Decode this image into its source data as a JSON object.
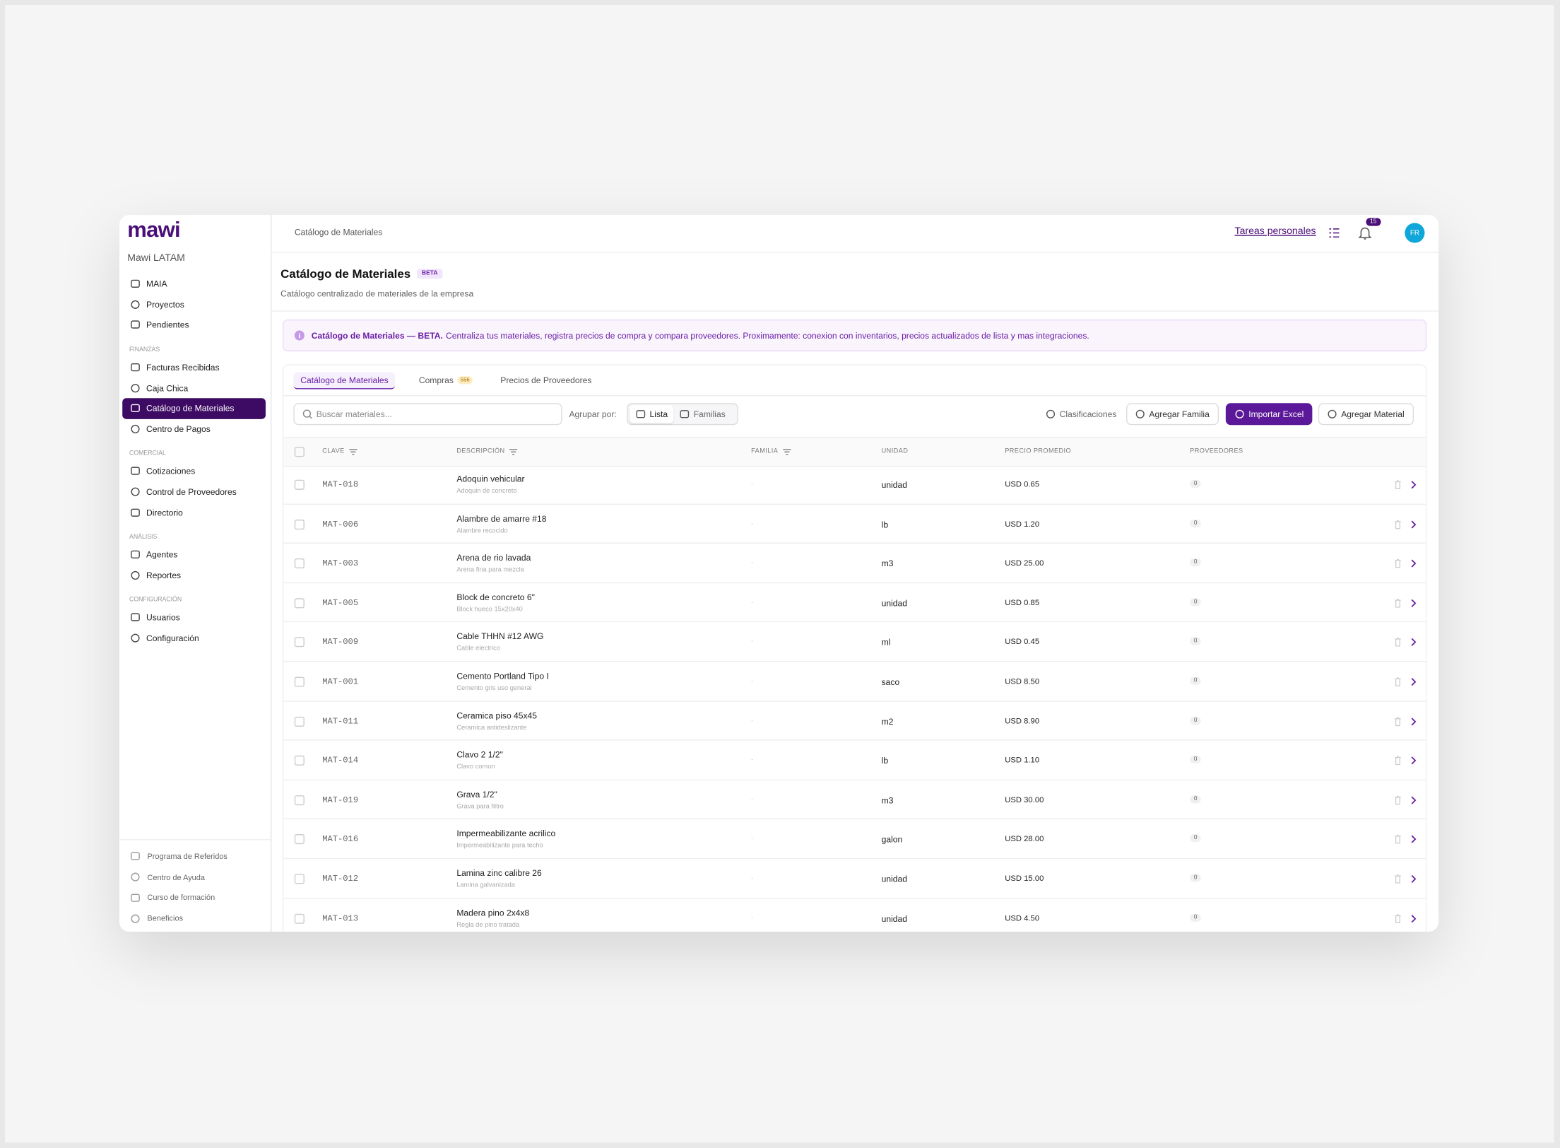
{
  "sidebar": {
    "logo": "mawi",
    "org": "Mawi LATAM",
    "sections": [
      {
        "items": [
          "MAIA",
          "Proyectos",
          "Pendientes"
        ]
      },
      {
        "label": "FINANZAS",
        "items": [
          "Facturas Recibidas",
          "Caja Chica",
          "Catálogo de Materiales",
          "Centro de Pagos"
        ]
      },
      {
        "label": "COMERCIAL",
        "items": [
          "Cotizaciones",
          "Control de Proveedores",
          "Directorio"
        ]
      },
      {
        "label": "ANÁLISIS",
        "items": [
          "Agentes",
          "Reportes"
        ]
      },
      {
        "label": "CONFIGURACIÓN",
        "items": [
          "Usuarios",
          "Configuración"
        ]
      }
    ],
    "footer": [
      "Programa de Referidos",
      "Centro de Ayuda",
      "Curso de formación",
      "Beneficios"
    ]
  },
  "topbar": {
    "breadcrumb": "Catálogo de Materiales",
    "tasks": "Tareas personales",
    "notifications": "15",
    "avatar": "FR"
  },
  "header": {
    "title": "Catálogo de Materiales",
    "badge": "BETA",
    "subtitle": "Catálogo centralizado de materiales de la empresa"
  },
  "banner": {
    "bold": "Catálogo de Materiales — BETA.",
    "text": "Centraliza tus materiales, registra precios de compra y compara proveedores. Proximamente: conexion con inventarios, precios actualizados de lista y mas integraciones."
  },
  "tabs": [
    {
      "label": "Catálogo de Materiales"
    },
    {
      "label": "Compras",
      "count": "556"
    },
    {
      "label": "Precios de Proveedores"
    }
  ],
  "toolbar": {
    "search_placeholder": "Buscar materiales...",
    "group_label": "Agrupar por:",
    "group_options": [
      "Lista",
      "Familias"
    ],
    "actions": [
      "Clasificaciones",
      "Agregar Familia",
      "Importar Excel",
      "Agregar Material"
    ]
  },
  "table": {
    "columns": [
      "CLAVE",
      "DESCRIPCIÓN",
      "FAMILIA",
      "UNIDAD",
      "PRECIO PROMEDIO",
      "PROVEEDORES"
    ],
    "rows": [
      {
        "clave": "MAT-018",
        "descripcion": "Adoquin vehicular",
        "detalle": "Adoquin de concreto",
        "familia": "-",
        "unidad": "unidad",
        "precio": "USD 0.65",
        "proveedores": "0"
      },
      {
        "clave": "MAT-006",
        "descripcion": "Alambre de amarre #18",
        "detalle": "Alambre recocido",
        "familia": "-",
        "unidad": "lb",
        "precio": "USD 1.20",
        "proveedores": "0"
      },
      {
        "clave": "MAT-003",
        "descripcion": "Arena de rio lavada",
        "detalle": "Arena fina para mezcla",
        "familia": "-",
        "unidad": "m3",
        "precio": "USD 25.00",
        "proveedores": "0"
      },
      {
        "clave": "MAT-005",
        "descripcion": "Block de concreto 6\"",
        "detalle": "Block hueco 15x20x40",
        "familia": "-",
        "unidad": "unidad",
        "precio": "USD 0.85",
        "proveedores": "0"
      },
      {
        "clave": "MAT-009",
        "descripcion": "Cable THHN #12 AWG",
        "detalle": "Cable electrico",
        "familia": "-",
        "unidad": "ml",
        "precio": "USD 0.45",
        "proveedores": "0"
      },
      {
        "clave": "MAT-001",
        "descripcion": "Cemento Portland Tipo I",
        "detalle": "Cemento gris uso general",
        "familia": "-",
        "unidad": "saco",
        "precio": "USD 8.50",
        "proveedores": "0"
      },
      {
        "clave": "MAT-011",
        "descripcion": "Ceramica piso 45x45",
        "detalle": "Ceramica antideslizante",
        "familia": "-",
        "unidad": "m2",
        "precio": "USD 8.90",
        "proveedores": "0"
      },
      {
        "clave": "MAT-014",
        "descripcion": "Clavo 2 1/2\"",
        "detalle": "Clavo comun",
        "familia": "-",
        "unidad": "lb",
        "precio": "USD 1.10",
        "proveedores": "0"
      },
      {
        "clave": "MAT-019",
        "descripcion": "Grava 1/2\"",
        "detalle": "Grava para filtro",
        "familia": "-",
        "unidad": "m3",
        "precio": "USD 30.00",
        "proveedores": "0"
      },
      {
        "clave": "MAT-016",
        "descripcion": "Impermeabilizante acrilico",
        "detalle": "Impermeabilizante para techo",
        "familia": "-",
        "unidad": "galon",
        "precio": "USD 28.00",
        "proveedores": "0"
      },
      {
        "clave": "MAT-012",
        "descripcion": "Lamina zinc calibre 26",
        "detalle": "Lamina galvanizada",
        "familia": "-",
        "unidad": "unidad",
        "precio": "USD 15.00",
        "proveedores": "0"
      },
      {
        "clave": "MAT-013",
        "descripcion": "Madera pino 2x4x8",
        "detalle": "Regla de pino tratada",
        "familia": "-",
        "unidad": "unidad",
        "precio": "USD 4.50",
        "proveedores": "0"
      }
    ]
  }
}
